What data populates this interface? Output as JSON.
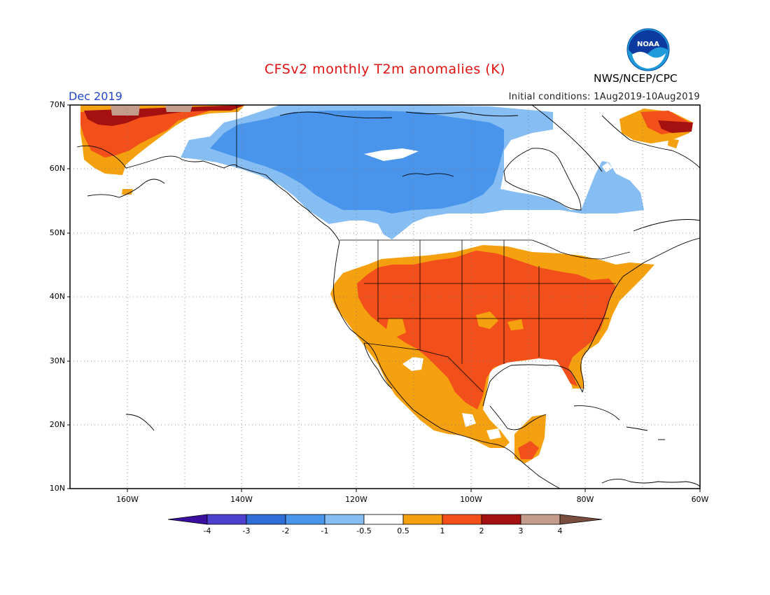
{
  "header": {
    "title": "CFSv2 monthly T2m anomalies (K)",
    "month": "Dec 2019",
    "initial_conditions": "Initial conditions: 1Aug2019-10Aug2019",
    "organization": "NWS/NCEP/CPC",
    "logo_text": "NOAA"
  },
  "map": {
    "region": "North America",
    "lat_range": [
      10,
      70
    ],
    "lon_range": [
      -170,
      -60
    ],
    "lat_labels": [
      "70N",
      "60N",
      "50N",
      "40N",
      "30N",
      "20N",
      "10N"
    ],
    "lon_labels": [
      "160W",
      "140W",
      "120W",
      "100W",
      "80W",
      "60W"
    ],
    "gridlines": "dotted"
  },
  "colorbar": {
    "levels": [
      "-4",
      "-3",
      "-2",
      "-1",
      "-0.5",
      "0.5",
      "1",
      "2",
      "3",
      "4"
    ],
    "colors": [
      "#3a0fa0",
      "#4d3fd0",
      "#2f6ed6",
      "#4a95ec",
      "#86bdf2",
      "#ffffff",
      "#f5a00f",
      "#f24f1a",
      "#a51111",
      "#c49c8c",
      "#7a4e3e"
    ]
  }
}
